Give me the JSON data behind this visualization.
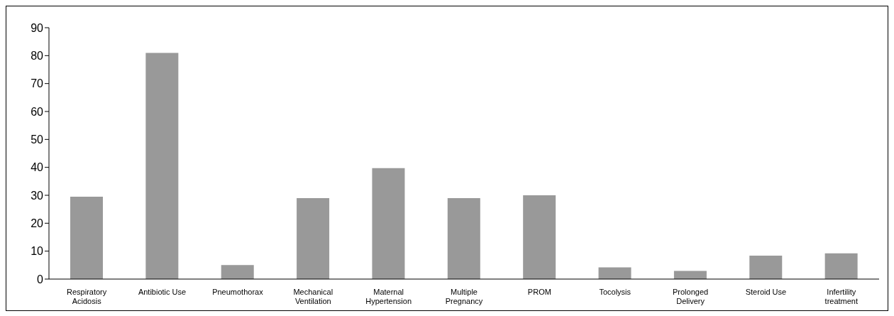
{
  "chart_data": {
    "type": "bar",
    "categories": [
      "Respiratory Acidosis",
      "Antibiotic Use",
      "Pneumothorax",
      "Mechanical Ventilation",
      "Maternal Hypertension",
      "Multiple Pregnancy",
      "PROM",
      "Tocolysis",
      "Prolonged Delivery",
      "Steroid Use",
      "Infertility treatment"
    ],
    "values": [
      29.5,
      81,
      5,
      29,
      39.7,
      29,
      30,
      4.2,
      2.9,
      8.4,
      9.2
    ],
    "color": "#999999",
    "ylim": [
      0,
      90
    ],
    "yticks": [
      0,
      10,
      20,
      30,
      40,
      50,
      60,
      70,
      80,
      90
    ],
    "grid": false,
    "legend": false
  }
}
